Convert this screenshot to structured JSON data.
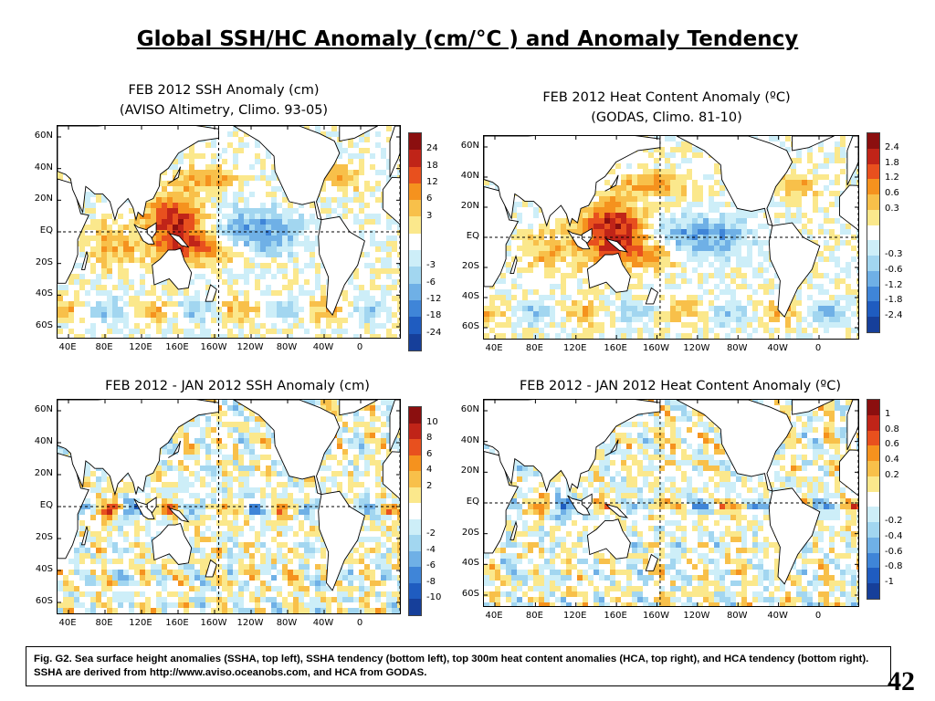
{
  "slide": {
    "title": "Global SSH/HC Anomaly (cm/°C ) and Anomaly Tendency",
    "caption": "Fig. G2. Sea surface height anomalies (SSHA, top left), SSHA tendency (bottom left), top 300m heat content anomalies (HCA, top right), and HCA tendency (bottom right).  SSHA are derived from http://www.aviso.oceanobs.com, and HCA from GODAS.",
    "page_number": "42"
  },
  "panels": [
    {
      "title_line1": "FEB 2012 SSH Anomaly (cm)",
      "title_line2": "(AVISO Altimetry, Climo. 93-05)",
      "lat_labels": [
        "60N",
        "40N",
        "20N",
        "EQ",
        "20S",
        "40S",
        "60S"
      ],
      "lon_labels": [
        "40E",
        "80E",
        "120E",
        "160E",
        "160W",
        "120W",
        "80W",
        "40W",
        "0"
      ],
      "colorbar_ticks": [
        "24",
        "18",
        "12",
        "6",
        "3",
        "-3",
        "-6",
        "-12",
        "-18",
        "-24"
      ]
    },
    {
      "title_line1": "FEB 2012 Heat Content Anomaly (ºC)",
      "title_line2": "(GODAS,  Climo. 81-10)",
      "lat_labels": [
        "60N",
        "40N",
        "20N",
        "EQ",
        "20S",
        "40S",
        "60S"
      ],
      "lon_labels": [
        "40E",
        "80E",
        "120E",
        "160E",
        "160W",
        "120W",
        "80W",
        "40W",
        "0"
      ],
      "colorbar_ticks": [
        "2.4",
        "1.8",
        "1.2",
        "0.6",
        "0.3",
        "-0.3",
        "-0.6",
        "-1.2",
        "-1.8",
        "-2.4"
      ]
    },
    {
      "title_line1": "FEB 2012 - JAN 2012 SSH Anomaly (cm)",
      "title_line2": "",
      "lat_labels": [
        "60N",
        "40N",
        "20N",
        "EQ",
        "20S",
        "40S",
        "60S"
      ],
      "lon_labels": [
        "40E",
        "80E",
        "120E",
        "160E",
        "160W",
        "120W",
        "80W",
        "40W",
        "0"
      ],
      "colorbar_ticks": [
        "10",
        "8",
        "6",
        "4",
        "2",
        "-2",
        "-4",
        "-6",
        "-8",
        "-10"
      ]
    },
    {
      "title_line1": "FEB 2012 - JAN 2012 Heat Content Anomaly (ºC)",
      "title_line2": "",
      "lat_labels": [
        "60N",
        "40N",
        "20N",
        "EQ",
        "20S",
        "40S",
        "60S"
      ],
      "lon_labels": [
        "40E",
        "80E",
        "120E",
        "160E",
        "160W",
        "120W",
        "80W",
        "40W",
        "0"
      ],
      "colorbar_ticks": [
        "1",
        "0.8",
        "0.6",
        "0.4",
        "0.2",
        "-0.2",
        "-0.4",
        "-0.6",
        "-0.8",
        "-1"
      ]
    }
  ],
  "colorbar_colors": [
    "#8b0f0f",
    "#c02418",
    "#e8501e",
    "#f5921e",
    "#f8c04a",
    "#fbe88c",
    "#ffffff",
    "#cdeef8",
    "#a2d6f0",
    "#6fb0e6",
    "#3f85d8",
    "#1f5cc0",
    "#163f9a"
  ]
}
